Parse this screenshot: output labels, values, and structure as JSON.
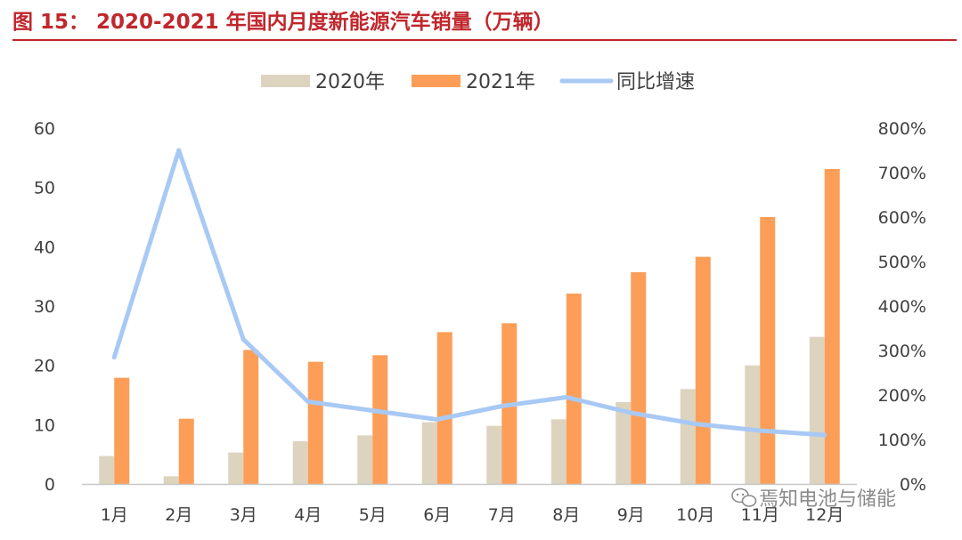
{
  "title": "图 15：  2020-2021 年国内月度新能源汽车销量（万辆）",
  "watermark": "焉知电池与储能",
  "colors": {
    "title": "#c0272d",
    "s2020": "#ddd4bf",
    "s2021": "#fc9e58",
    "growth": "#a8c9f5",
    "axis": "#c8c8c8",
    "text": "#404040"
  },
  "chart_data": {
    "type": "bar",
    "categories": [
      "1月",
      "2月",
      "3月",
      "4月",
      "5月",
      "6月",
      "7月",
      "8月",
      "9月",
      "10月",
      "11月",
      "12月"
    ],
    "series": [
      {
        "name": "2020年",
        "type": "bar",
        "axis": "left",
        "values": [
          4.7,
          1.3,
          5.3,
          7.2,
          8.2,
          10.4,
          9.8,
          10.9,
          13.8,
          16.0,
          20.0,
          24.8
        ]
      },
      {
        "name": "2021年",
        "type": "bar",
        "axis": "left",
        "values": [
          17.9,
          11.0,
          22.6,
          20.6,
          21.7,
          25.6,
          27.1,
          32.1,
          35.7,
          38.3,
          45.0,
          53.1
        ]
      },
      {
        "name": "同比增速",
        "type": "line",
        "axis": "right",
        "values": [
          285,
          750,
          325,
          185,
          165,
          145,
          175,
          195,
          160,
          135,
          120,
          110
        ]
      }
    ],
    "ylim_left": [
      0,
      60
    ],
    "yticks_left": [
      "0",
      "10",
      "20",
      "30",
      "40",
      "50",
      "60"
    ],
    "ylim_right": [
      0,
      800
    ],
    "yticks_right": [
      "0%",
      "100%",
      "200%",
      "300%",
      "400%",
      "500%",
      "600%",
      "700%",
      "800%"
    ],
    "legend_position": "top-center",
    "grid": false
  }
}
